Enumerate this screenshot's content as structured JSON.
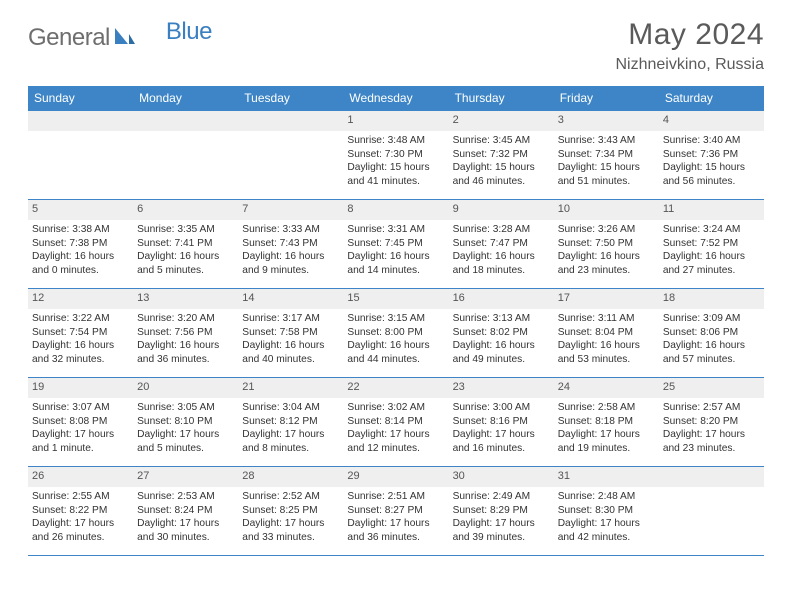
{
  "header": {
    "logo_general": "General",
    "logo_blue": "Blue",
    "month_title": "May 2024",
    "location": "Nizhneivkino, Russia"
  },
  "colors": {
    "accent": "#3d85c6",
    "daynum_bg": "#efefef",
    "text": "#333333",
    "logo_gray": "#6e6e6e",
    "logo_blue": "#3a7fc0"
  },
  "weekdays": [
    "Sunday",
    "Monday",
    "Tuesday",
    "Wednesday",
    "Thursday",
    "Friday",
    "Saturday"
  ],
  "weeks": [
    [
      {
        "blank": true
      },
      {
        "blank": true
      },
      {
        "blank": true
      },
      {
        "day": "1",
        "sunrise": "Sunrise: 3:48 AM",
        "sunset": "Sunset: 7:30 PM",
        "daylight1": "Daylight: 15 hours",
        "daylight2": "and 41 minutes."
      },
      {
        "day": "2",
        "sunrise": "Sunrise: 3:45 AM",
        "sunset": "Sunset: 7:32 PM",
        "daylight1": "Daylight: 15 hours",
        "daylight2": "and 46 minutes."
      },
      {
        "day": "3",
        "sunrise": "Sunrise: 3:43 AM",
        "sunset": "Sunset: 7:34 PM",
        "daylight1": "Daylight: 15 hours",
        "daylight2": "and 51 minutes."
      },
      {
        "day": "4",
        "sunrise": "Sunrise: 3:40 AM",
        "sunset": "Sunset: 7:36 PM",
        "daylight1": "Daylight: 15 hours",
        "daylight2": "and 56 minutes."
      }
    ],
    [
      {
        "day": "5",
        "sunrise": "Sunrise: 3:38 AM",
        "sunset": "Sunset: 7:38 PM",
        "daylight1": "Daylight: 16 hours",
        "daylight2": "and 0 minutes."
      },
      {
        "day": "6",
        "sunrise": "Sunrise: 3:35 AM",
        "sunset": "Sunset: 7:41 PM",
        "daylight1": "Daylight: 16 hours",
        "daylight2": "and 5 minutes."
      },
      {
        "day": "7",
        "sunrise": "Sunrise: 3:33 AM",
        "sunset": "Sunset: 7:43 PM",
        "daylight1": "Daylight: 16 hours",
        "daylight2": "and 9 minutes."
      },
      {
        "day": "8",
        "sunrise": "Sunrise: 3:31 AM",
        "sunset": "Sunset: 7:45 PM",
        "daylight1": "Daylight: 16 hours",
        "daylight2": "and 14 minutes."
      },
      {
        "day": "9",
        "sunrise": "Sunrise: 3:28 AM",
        "sunset": "Sunset: 7:47 PM",
        "daylight1": "Daylight: 16 hours",
        "daylight2": "and 18 minutes."
      },
      {
        "day": "10",
        "sunrise": "Sunrise: 3:26 AM",
        "sunset": "Sunset: 7:50 PM",
        "daylight1": "Daylight: 16 hours",
        "daylight2": "and 23 minutes."
      },
      {
        "day": "11",
        "sunrise": "Sunrise: 3:24 AM",
        "sunset": "Sunset: 7:52 PM",
        "daylight1": "Daylight: 16 hours",
        "daylight2": "and 27 minutes."
      }
    ],
    [
      {
        "day": "12",
        "sunrise": "Sunrise: 3:22 AM",
        "sunset": "Sunset: 7:54 PM",
        "daylight1": "Daylight: 16 hours",
        "daylight2": "and 32 minutes."
      },
      {
        "day": "13",
        "sunrise": "Sunrise: 3:20 AM",
        "sunset": "Sunset: 7:56 PM",
        "daylight1": "Daylight: 16 hours",
        "daylight2": "and 36 minutes."
      },
      {
        "day": "14",
        "sunrise": "Sunrise: 3:17 AM",
        "sunset": "Sunset: 7:58 PM",
        "daylight1": "Daylight: 16 hours",
        "daylight2": "and 40 minutes."
      },
      {
        "day": "15",
        "sunrise": "Sunrise: 3:15 AM",
        "sunset": "Sunset: 8:00 PM",
        "daylight1": "Daylight: 16 hours",
        "daylight2": "and 44 minutes."
      },
      {
        "day": "16",
        "sunrise": "Sunrise: 3:13 AM",
        "sunset": "Sunset: 8:02 PM",
        "daylight1": "Daylight: 16 hours",
        "daylight2": "and 49 minutes."
      },
      {
        "day": "17",
        "sunrise": "Sunrise: 3:11 AM",
        "sunset": "Sunset: 8:04 PM",
        "daylight1": "Daylight: 16 hours",
        "daylight2": "and 53 minutes."
      },
      {
        "day": "18",
        "sunrise": "Sunrise: 3:09 AM",
        "sunset": "Sunset: 8:06 PM",
        "daylight1": "Daylight: 16 hours",
        "daylight2": "and 57 minutes."
      }
    ],
    [
      {
        "day": "19",
        "sunrise": "Sunrise: 3:07 AM",
        "sunset": "Sunset: 8:08 PM",
        "daylight1": "Daylight: 17 hours",
        "daylight2": "and 1 minute."
      },
      {
        "day": "20",
        "sunrise": "Sunrise: 3:05 AM",
        "sunset": "Sunset: 8:10 PM",
        "daylight1": "Daylight: 17 hours",
        "daylight2": "and 5 minutes."
      },
      {
        "day": "21",
        "sunrise": "Sunrise: 3:04 AM",
        "sunset": "Sunset: 8:12 PM",
        "daylight1": "Daylight: 17 hours",
        "daylight2": "and 8 minutes."
      },
      {
        "day": "22",
        "sunrise": "Sunrise: 3:02 AM",
        "sunset": "Sunset: 8:14 PM",
        "daylight1": "Daylight: 17 hours",
        "daylight2": "and 12 minutes."
      },
      {
        "day": "23",
        "sunrise": "Sunrise: 3:00 AM",
        "sunset": "Sunset: 8:16 PM",
        "daylight1": "Daylight: 17 hours",
        "daylight2": "and 16 minutes."
      },
      {
        "day": "24",
        "sunrise": "Sunrise: 2:58 AM",
        "sunset": "Sunset: 8:18 PM",
        "daylight1": "Daylight: 17 hours",
        "daylight2": "and 19 minutes."
      },
      {
        "day": "25",
        "sunrise": "Sunrise: 2:57 AM",
        "sunset": "Sunset: 8:20 PM",
        "daylight1": "Daylight: 17 hours",
        "daylight2": "and 23 minutes."
      }
    ],
    [
      {
        "day": "26",
        "sunrise": "Sunrise: 2:55 AM",
        "sunset": "Sunset: 8:22 PM",
        "daylight1": "Daylight: 17 hours",
        "daylight2": "and 26 minutes."
      },
      {
        "day": "27",
        "sunrise": "Sunrise: 2:53 AM",
        "sunset": "Sunset: 8:24 PM",
        "daylight1": "Daylight: 17 hours",
        "daylight2": "and 30 minutes."
      },
      {
        "day": "28",
        "sunrise": "Sunrise: 2:52 AM",
        "sunset": "Sunset: 8:25 PM",
        "daylight1": "Daylight: 17 hours",
        "daylight2": "and 33 minutes."
      },
      {
        "day": "29",
        "sunrise": "Sunrise: 2:51 AM",
        "sunset": "Sunset: 8:27 PM",
        "daylight1": "Daylight: 17 hours",
        "daylight2": "and 36 minutes."
      },
      {
        "day": "30",
        "sunrise": "Sunrise: 2:49 AM",
        "sunset": "Sunset: 8:29 PM",
        "daylight1": "Daylight: 17 hours",
        "daylight2": "and 39 minutes."
      },
      {
        "day": "31",
        "sunrise": "Sunrise: 2:48 AM",
        "sunset": "Sunset: 8:30 PM",
        "daylight1": "Daylight: 17 hours",
        "daylight2": "and 42 minutes."
      },
      {
        "blank": true
      }
    ]
  ]
}
